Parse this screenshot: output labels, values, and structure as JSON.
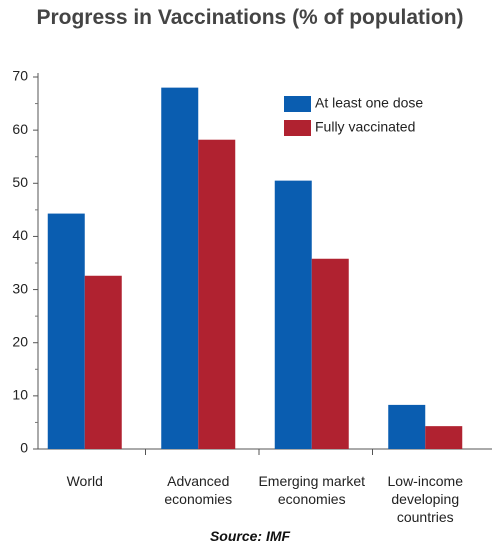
{
  "chart_data": {
    "type": "bar",
    "title": "Progress in Vaccinations (% of population)",
    "source": "Source: IMF",
    "categories": [
      "World",
      "Advanced economies",
      "Emerging market economies",
      "Low-income developing countries"
    ],
    "series": [
      {
        "name": "At least one dose",
        "color": "#0a5db0",
        "values": [
          44.3,
          68.0,
          50.5,
          8.3
        ]
      },
      {
        "name": "Fully vaccinated",
        "color": "#b02230",
        "values": [
          32.6,
          58.2,
          35.8,
          4.3
        ]
      }
    ],
    "ylim": [
      0,
      70
    ],
    "yticks": [
      0,
      10,
      20,
      30,
      40,
      50,
      60,
      70
    ],
    "legend": "upper right"
  }
}
